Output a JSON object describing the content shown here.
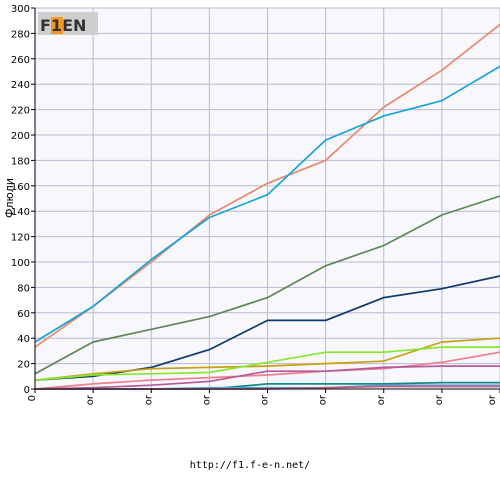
{
  "logo": {
    "text": "F1EN"
  },
  "footer": {
    "url": "http://f1.f-e-n.net/"
  },
  "colors": {
    "plot_bg": "#f8f8fc",
    "grid": "#b9b9d3",
    "axis": "#000000"
  },
  "chart_data": {
    "type": "line",
    "ylabel": "Флюли",
    "xlabel": "",
    "ylim": [
      0,
      300
    ],
    "yticks": [
      0,
      20,
      40,
      60,
      80,
      100,
      120,
      140,
      160,
      180,
      200,
      220,
      240,
      260,
      280,
      300
    ],
    "x_tick_labels": [
      "0",
      "or",
      "or",
      "or",
      "or",
      "or",
      "or",
      "or",
      "or"
    ],
    "grid": true,
    "legend": "none",
    "series": [
      {
        "color": "#e8896a",
        "values": [
          33,
          65,
          100,
          137,
          162,
          180,
          222,
          251,
          287
        ]
      },
      {
        "color": "#16a4d8",
        "values": [
          37,
          65,
          102,
          135,
          153,
          196,
          215,
          227,
          254
        ]
      },
      {
        "color": "#5f855a",
        "values": [
          12,
          37,
          47,
          57,
          72,
          97,
          113,
          137,
          152
        ]
      },
      {
        "color": "#0c3a6e",
        "values": [
          7,
          10,
          17,
          31,
          54,
          54,
          72,
          79,
          89
        ]
      },
      {
        "color": "#c8a010",
        "values": [
          7,
          12,
          16,
          17,
          18,
          20,
          22,
          37,
          40
        ]
      },
      {
        "color": "#88e830",
        "values": [
          7,
          11,
          12,
          13,
          21,
          29,
          29,
          33,
          33
        ]
      },
      {
        "color": "#f07f8c",
        "values": [
          0,
          4,
          7,
          9,
          11,
          14,
          16,
          21,
          29
        ]
      },
      {
        "color": "#b45a9a",
        "values": [
          0,
          1,
          3,
          6,
          14,
          14,
          17,
          18,
          18
        ]
      },
      {
        "color": "#0e8a8a",
        "values": [
          0,
          0,
          0,
          0,
          4,
          4,
          4,
          5,
          5
        ]
      },
      {
        "color": "#5aa0d8",
        "values": [
          0,
          0,
          0,
          1,
          1,
          1,
          3,
          3,
          3
        ]
      },
      {
        "color": "#c06080",
        "values": [
          0,
          0,
          0,
          0,
          0,
          1,
          2,
          2,
          2
        ]
      }
    ]
  }
}
